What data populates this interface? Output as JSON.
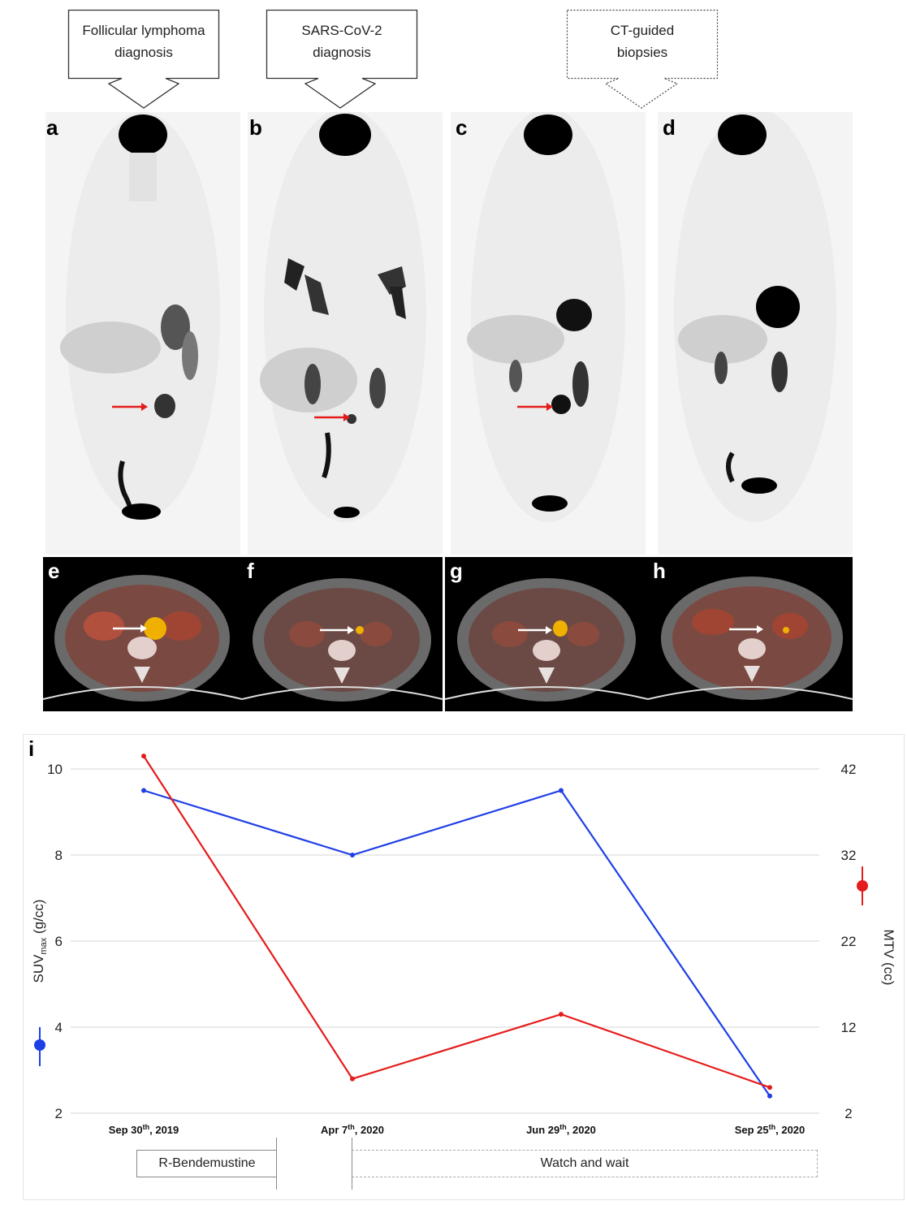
{
  "callouts": [
    {
      "line1": "Follicular lymphoma",
      "line2": "diagnosis",
      "style": "solid"
    },
    {
      "line1": "SARS-CoV-2",
      "line2": "diagnosis",
      "style": "solid"
    },
    {
      "line1": "CT-guided",
      "line2": "biopsies",
      "style": "dotted"
    }
  ],
  "panels": {
    "pet": [
      "a",
      "b",
      "c",
      "d"
    ],
    "ct": [
      "e",
      "f",
      "g",
      "h"
    ],
    "chart": "i"
  },
  "colors": {
    "suv": "#1f3fe6",
    "mtv": "#e51c1c",
    "arrow_pet": "#e51c1c",
    "arrow_ct": "#ffffff",
    "grid": "#d6d6d6"
  },
  "chart_data": {
    "type": "line",
    "x": [
      "Sep 30th, 2019",
      "Apr 7th, 2020",
      "Jun 29th, 2020",
      "Sep 25th, 2020"
    ],
    "x_labels": [
      {
        "base": "Sep 30",
        "sup": "th",
        "rest": ", 2019"
      },
      {
        "base": "Apr 7",
        "sup": "th",
        "rest": ", 2020"
      },
      {
        "base": "Jun 29",
        "sup": "th",
        "rest": ", 2020"
      },
      {
        "base": "Sep 25",
        "sup": "th",
        "rest": ", 2020"
      }
    ],
    "series": [
      {
        "name": "SUVmax",
        "axis": "left",
        "values": [
          9.5,
          8.0,
          9.5,
          2.4
        ]
      },
      {
        "name": "MTV",
        "axis": "right",
        "values": [
          43.5,
          6.0,
          13.5,
          5.0
        ]
      }
    ],
    "ylabel_left": {
      "base": "SUV",
      "sub": "max",
      "rest": " (g/cc)"
    },
    "ylabel_right": "MTV (cc)",
    "ylim_left": [
      2,
      10
    ],
    "yticks_left": [
      "2",
      "4",
      "6",
      "8",
      "10"
    ],
    "ylim_right": [
      2,
      42
    ],
    "yticks_right": [
      "2",
      "12",
      "22",
      "32",
      "42"
    ],
    "grid": true
  },
  "timeline": [
    {
      "label": "R-Bendemustine",
      "style": "solid"
    },
    {
      "label": "Watch and wait",
      "style": "dashed"
    }
  ]
}
